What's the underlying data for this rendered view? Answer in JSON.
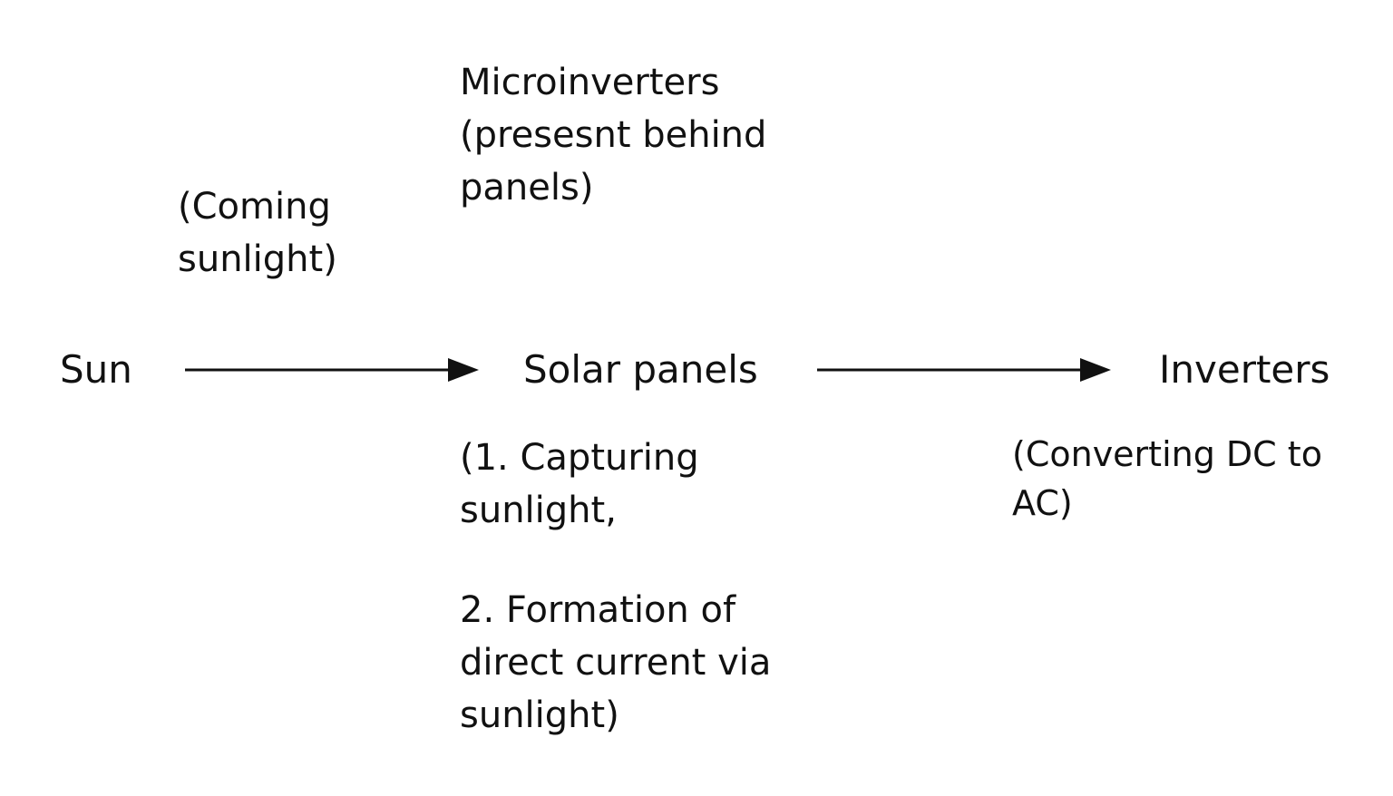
{
  "nodes": {
    "sun": "Sun",
    "solar_panels": "Solar panels",
    "inverters": "Inverters"
  },
  "notes": {
    "coming_sunlight": "(Coming\nsunlight)",
    "microinverters": "Microinverters\n(presesnt behind\npanels)",
    "capturing": "(1. Capturing\nsunlight,",
    "formation": "2. Formation of\ndirect current via\nsunlight)",
    "converting": "(Converting DC to\nAC)"
  },
  "colors": {
    "text": "#111111",
    "arrow": "#111111",
    "background": "#ffffff"
  }
}
